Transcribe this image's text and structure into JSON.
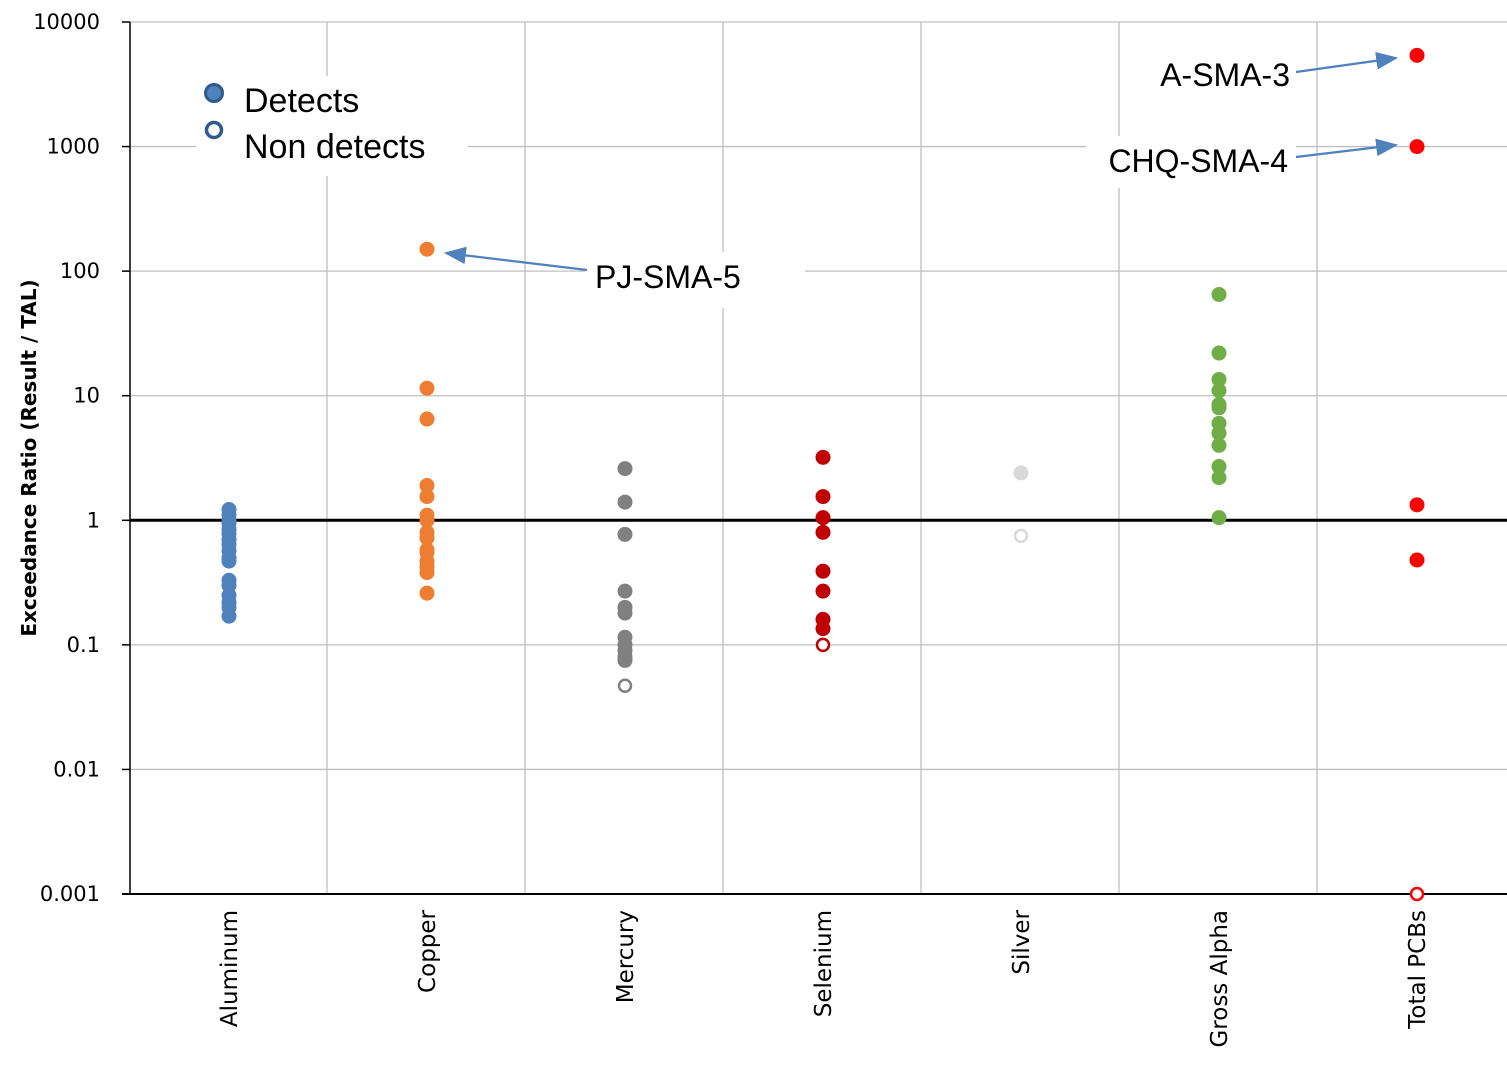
{
  "chart_data": {
    "type": "scatter",
    "ylabel": "Exceedance Ratio (Result / TAL)",
    "yscale": "log",
    "ylim": [
      0.001,
      10000
    ],
    "yticks": [
      "10000",
      "1000",
      "100",
      "10",
      "1",
      "0.1",
      "0.01",
      "0.001"
    ],
    "ytick_values": [
      10000,
      1000,
      100,
      10,
      1,
      0.1,
      0.01,
      0.001
    ],
    "reference_line": 1,
    "grid": true,
    "categories": [
      "Aluminum",
      "Copper",
      "Mercury",
      "Selenium",
      "Silver",
      "Gross Alpha",
      "Total PCBs"
    ],
    "legend": {
      "placement": "top-left",
      "entries": [
        {
          "label": "Detects",
          "style": "filled",
          "color": "#2E5A8F"
        },
        {
          "label": "Non detects",
          "style": "hollow",
          "color": "#2E5A8F"
        }
      ]
    },
    "series": [
      {
        "category": "Aluminum",
        "color": "#4F81BD",
        "detects": [
          1.22,
          1.1,
          1.0,
          0.95,
          0.85,
          0.78,
          0.7,
          0.64,
          0.57,
          0.5,
          0.47,
          0.33,
          0.3,
          0.25,
          0.22,
          0.2,
          0.17
        ],
        "non_detects": []
      },
      {
        "category": "Copper",
        "color": "#ED7D31",
        "detects": [
          150,
          11.5,
          6.5,
          1.9,
          1.55,
          1.1,
          1.0,
          0.8,
          0.72,
          0.58,
          0.55,
          0.47,
          0.42,
          0.38,
          0.26
        ],
        "non_detects": []
      },
      {
        "category": "Mercury",
        "color": "#808080",
        "detects": [
          2.6,
          1.4,
          0.77,
          0.27,
          0.2,
          0.18,
          0.115,
          0.1,
          0.09,
          0.08,
          0.075
        ],
        "non_detects": [
          0.047
        ]
      },
      {
        "category": "Selenium",
        "color": "#C00000",
        "detects": [
          3.2,
          1.55,
          1.05,
          0.8,
          0.39,
          0.27,
          0.16,
          0.135
        ],
        "non_detects": [
          0.1
        ]
      },
      {
        "category": "Silver",
        "color": "#D9D9D9",
        "detects": [
          2.4
        ],
        "non_detects": [
          0.75
        ]
      },
      {
        "category": "Gross Alpha",
        "color": "#70AD47",
        "detects": [
          65,
          22,
          13.5,
          11,
          8.5,
          8,
          6,
          5,
          4,
          2.7,
          2.2,
          1.05
        ],
        "non_detects": []
      },
      {
        "category": "Total PCBs",
        "color": "#FF0000",
        "detects": [
          5400,
          1000,
          1.33,
          0.48
        ],
        "non_detects": [
          0.001
        ]
      }
    ],
    "annotations": [
      {
        "text": "PJ-SMA-5",
        "category": "Copper",
        "value": 150
      },
      {
        "text": "A-SMA-3",
        "category": "Total PCBs",
        "value": 5400
      },
      {
        "text": "CHQ-SMA-4",
        "category": "Total PCBs",
        "value": 1000
      }
    ]
  }
}
